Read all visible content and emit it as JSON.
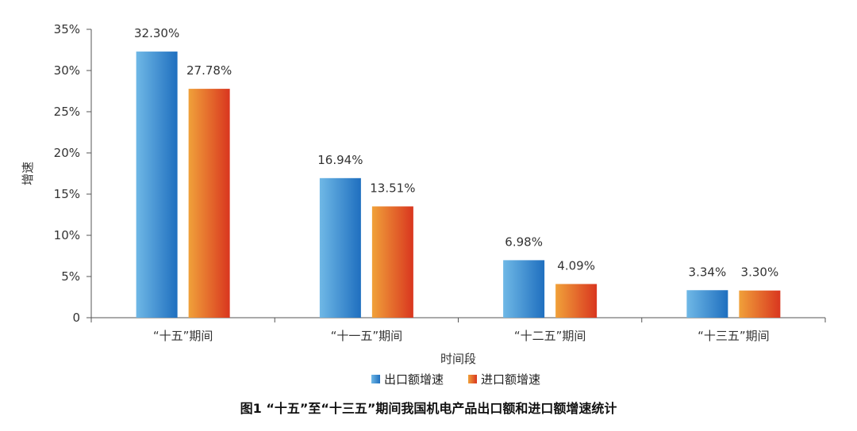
{
  "caption": "图1 “十五”至“十三五”期间我国机电产品出口额和进口额增速统计",
  "chart_data": {
    "type": "bar",
    "title": "",
    "xlabel": "时间段",
    "ylabel": "增速",
    "ylim": [
      0,
      35
    ],
    "yticks": [
      0,
      5,
      10,
      15,
      20,
      25,
      30,
      35
    ],
    "ytick_labels": [
      "0",
      "5%",
      "10%",
      "15%",
      "20%",
      "25%",
      "30%",
      "35%"
    ],
    "categories": [
      "“十五”期间",
      "“十一五”期间",
      "“十二五”期间",
      "“十三五”期间"
    ],
    "series": [
      {
        "name": "出口额增速",
        "values": [
          32.3,
          16.94,
          6.98,
          3.34
        ],
        "labels": [
          "32.30%",
          "16.94%",
          "6.98%",
          "3.34%"
        ],
        "color_light": "#6fb8e6",
        "color_dark": "#1f6fbf"
      },
      {
        "name": "进口额增速",
        "values": [
          27.78,
          13.51,
          4.09,
          3.3
        ],
        "labels": [
          "27.78%",
          "13.51%",
          "4.09%",
          "3.30%"
        ],
        "color_light": "#f0a13a",
        "color_dark": "#d9361f"
      }
    ],
    "legend_position": "bottom-center",
    "grid": false
  }
}
